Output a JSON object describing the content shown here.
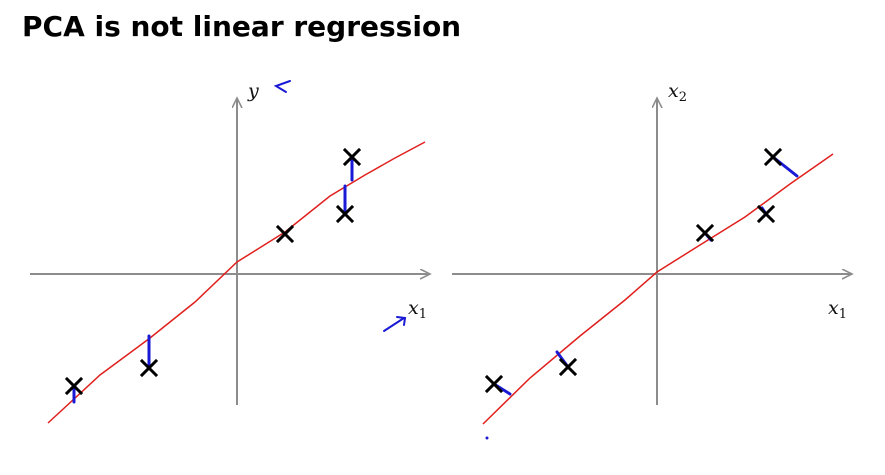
{
  "slide": {
    "title": "PCA is not linear regression"
  },
  "left_plot": {
    "x_axis_label": "x",
    "x_axis_subscript": "1",
    "y_axis_label": "y",
    "y_axis_subscript": ""
  },
  "right_plot": {
    "x_axis_label": "x",
    "x_axis_subscript": "1",
    "y_axis_label": "x",
    "y_axis_subscript": "2"
  },
  "colors": {
    "axis": "#8c8c8c",
    "fit_line": "#e0201d",
    "marker": "#000000",
    "annotation": "#1a1ad6"
  }
}
